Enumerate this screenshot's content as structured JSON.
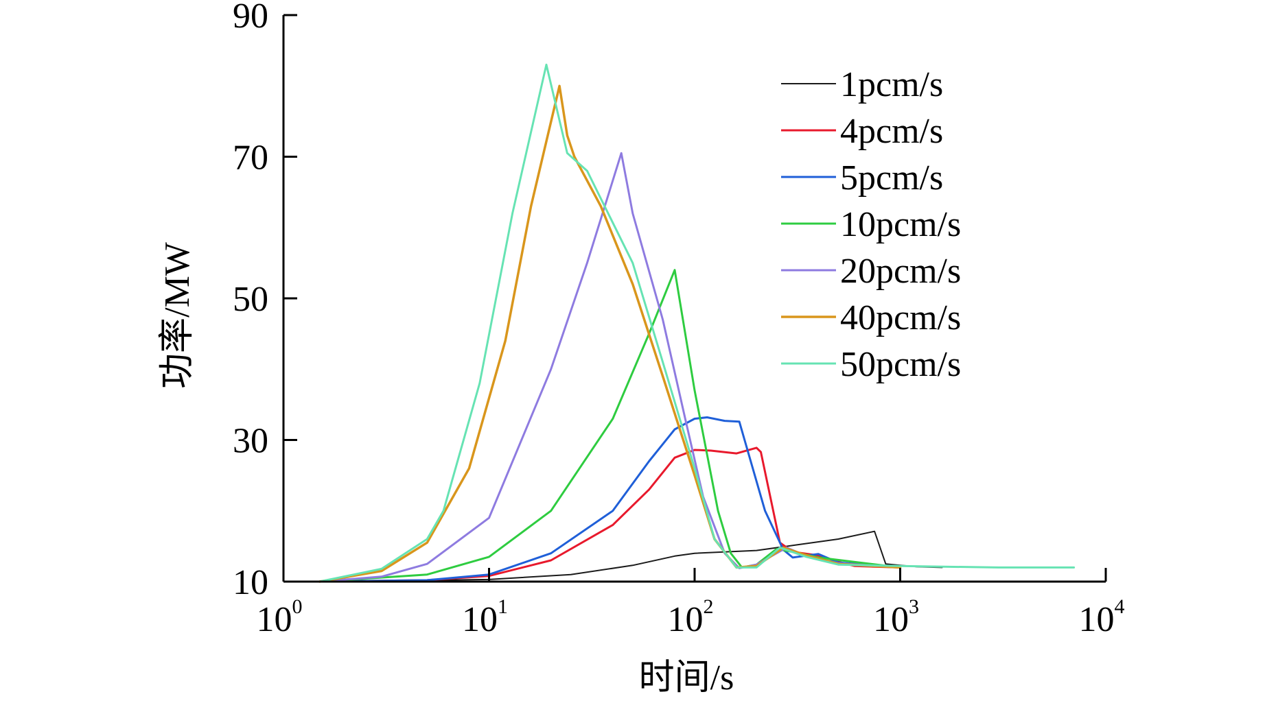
{
  "chart_data": {
    "type": "line",
    "title": "",
    "xlabel": "时间/s",
    "ylabel": "功率/MW",
    "xscale": "log",
    "xlim": [
      1,
      10000
    ],
    "ylim": [
      10,
      90
    ],
    "x_ticks": [
      {
        "value": 1,
        "base": "10",
        "exp": "0"
      },
      {
        "value": 10,
        "base": "10",
        "exp": "1"
      },
      {
        "value": 100,
        "base": "10",
        "exp": "2"
      },
      {
        "value": 1000,
        "base": "10",
        "exp": "3"
      },
      {
        "value": 10000,
        "base": "10",
        "exp": "4"
      }
    ],
    "y_ticks": [
      10,
      30,
      50,
      70,
      90
    ],
    "legend_position": "top-right",
    "series": [
      {
        "name": "1pcm/s",
        "color": "#1a1a1a",
        "width": 2,
        "points": [
          [
            1.5,
            10
          ],
          [
            10,
            10.3
          ],
          [
            25,
            11
          ],
          [
            50,
            12.3
          ],
          [
            80,
            13.6
          ],
          [
            100,
            14
          ],
          [
            200,
            14.4
          ],
          [
            300,
            15.1
          ],
          [
            500,
            16
          ],
          [
            750,
            17.1
          ],
          [
            850,
            12.5
          ],
          [
            1000,
            12.3
          ],
          [
            1200,
            12.1
          ],
          [
            1600,
            12
          ]
        ]
      },
      {
        "name": "4pcm/s",
        "color": "#e8192c",
        "width": 3,
        "points": [
          [
            1.5,
            10
          ],
          [
            5,
            10.2
          ],
          [
            10,
            10.8
          ],
          [
            20,
            13
          ],
          [
            40,
            18
          ],
          [
            60,
            23
          ],
          [
            80,
            27.5
          ],
          [
            100,
            28.6
          ],
          [
            120,
            28.5
          ],
          [
            160,
            28.1
          ],
          [
            200,
            28.9
          ],
          [
            210,
            28.3
          ],
          [
            260,
            15.5
          ],
          [
            300,
            14.2
          ],
          [
            400,
            13.7
          ],
          [
            500,
            12.8
          ],
          [
            600,
            12.2
          ],
          [
            1000,
            12
          ]
        ]
      },
      {
        "name": "5pcm/s",
        "color": "#1f5fd8",
        "width": 3,
        "points": [
          [
            1.5,
            10
          ],
          [
            5,
            10.2
          ],
          [
            10,
            11
          ],
          [
            20,
            14
          ],
          [
            40,
            20
          ],
          [
            60,
            27
          ],
          [
            80,
            31.5
          ],
          [
            100,
            33
          ],
          [
            115,
            33.2
          ],
          [
            140,
            32.7
          ],
          [
            165,
            32.6
          ],
          [
            175,
            30
          ],
          [
            220,
            20
          ],
          [
            270,
            14.5
          ],
          [
            300,
            13.4
          ],
          [
            400,
            13.9
          ],
          [
            500,
            12.7
          ],
          [
            1000,
            12
          ]
        ]
      },
      {
        "name": "10pcm/s",
        "color": "#2ecc40",
        "width": 3,
        "points": [
          [
            1.5,
            10
          ],
          [
            5,
            11
          ],
          [
            10,
            13.5
          ],
          [
            20,
            20
          ],
          [
            40,
            33
          ],
          [
            60,
            45
          ],
          [
            80,
            54
          ],
          [
            100,
            37
          ],
          [
            130,
            20
          ],
          [
            150,
            14
          ],
          [
            170,
            12
          ],
          [
            200,
            12.4
          ],
          [
            250,
            14.6
          ],
          [
            300,
            14.2
          ],
          [
            400,
            13.4
          ],
          [
            1000,
            12
          ]
        ]
      },
      {
        "name": "20pcm/s",
        "color": "#8e7be0",
        "width": 3,
        "points": [
          [
            1.5,
            10
          ],
          [
            3,
            10.7
          ],
          [
            5,
            12.5
          ],
          [
            10,
            19
          ],
          [
            20,
            40
          ],
          [
            30,
            55
          ],
          [
            44,
            70.5
          ],
          [
            50,
            62
          ],
          [
            70,
            47
          ],
          [
            90,
            33
          ],
          [
            110,
            22
          ],
          [
            140,
            14
          ],
          [
            165,
            11.9
          ],
          [
            200,
            12.4
          ],
          [
            280,
            14.8
          ],
          [
            350,
            13.6
          ],
          [
            500,
            12.6
          ],
          [
            1000,
            12
          ]
        ]
      },
      {
        "name": "40pcm/s",
        "color": "#d9961c",
        "width": 3.5,
        "points": [
          [
            1.5,
            10
          ],
          [
            3,
            11.5
          ],
          [
            5,
            15.5
          ],
          [
            8,
            26
          ],
          [
            12,
            44
          ],
          [
            16,
            63
          ],
          [
            22,
            80
          ],
          [
            24,
            73
          ],
          [
            26,
            70
          ],
          [
            35,
            63
          ],
          [
            50,
            52
          ],
          [
            70,
            39
          ],
          [
            100,
            25
          ],
          [
            125,
            16
          ],
          [
            160,
            12
          ],
          [
            200,
            12.2
          ],
          [
            270,
            14.8
          ],
          [
            350,
            13.7
          ],
          [
            500,
            12.5
          ],
          [
            1000,
            12
          ]
        ]
      },
      {
        "name": "50pcm/s",
        "color": "#66e3b3",
        "width": 3,
        "points": [
          [
            1.5,
            10
          ],
          [
            3,
            11.8
          ],
          [
            5,
            16
          ],
          [
            6,
            20
          ],
          [
            9,
            38
          ],
          [
            13,
            62
          ],
          [
            19,
            83
          ],
          [
            24,
            70.5
          ],
          [
            30,
            68
          ],
          [
            50,
            55
          ],
          [
            70,
            41
          ],
          [
            100,
            26
          ],
          [
            125,
            16
          ],
          [
            160,
            12
          ],
          [
            200,
            12
          ],
          [
            260,
            14.8
          ],
          [
            350,
            13.5
          ],
          [
            500,
            12.4
          ],
          [
            1000,
            12.2
          ],
          [
            3000,
            12
          ],
          [
            7000,
            12
          ]
        ]
      }
    ]
  }
}
